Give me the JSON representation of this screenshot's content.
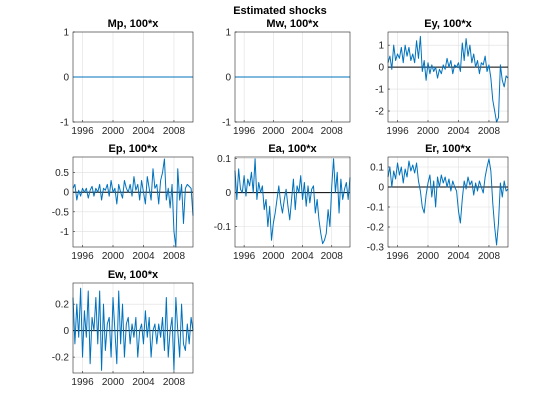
{
  "figure": {
    "title": "Estimated shocks",
    "line_color": "#0072BD",
    "zero_line_color": "#000000"
  },
  "chart_data": [
    {
      "type": "line",
      "title": "Mp, 100*x",
      "x_start": 1994.75,
      "x_step": 0.25,
      "xlim": [
        1994.75,
        2010.5
      ],
      "xticks": [
        1996,
        2000,
        2004,
        2008
      ],
      "xtick_labels": [
        "1996",
        "2000",
        "2004",
        "2008"
      ],
      "ylim": [
        -1,
        1
      ],
      "yticks": [
        -1,
        0,
        1
      ],
      "ytick_labels": [
        "-1",
        "0",
        "1"
      ],
      "grid": true,
      "values": [
        0,
        0,
        0,
        0,
        0,
        0,
        0,
        0,
        0,
        0,
        0,
        0,
        0,
        0,
        0,
        0,
        0,
        0,
        0,
        0,
        0,
        0,
        0,
        0,
        0,
        0,
        0,
        0,
        0,
        0,
        0,
        0,
        0,
        0,
        0,
        0,
        0,
        0,
        0,
        0,
        0,
        0,
        0,
        0,
        0,
        0,
        0,
        0,
        0,
        0,
        0,
        0,
        0,
        0,
        0,
        0,
        0,
        0,
        0,
        0,
        0,
        0,
        0,
        0
      ]
    },
    {
      "type": "line",
      "title": "Mw, 100*x",
      "x_start": 1994.75,
      "x_step": 0.25,
      "xlim": [
        1994.75,
        2010.5
      ],
      "xticks": [
        1996,
        2000,
        2004,
        2008
      ],
      "xtick_labels": [
        "1996",
        "2000",
        "2004",
        "2008"
      ],
      "ylim": [
        -1,
        1
      ],
      "yticks": [
        -1,
        0,
        1
      ],
      "ytick_labels": [
        "-1",
        "0",
        "1"
      ],
      "grid": true,
      "values": [
        0,
        0,
        0,
        0,
        0,
        0,
        0,
        0,
        0,
        0,
        0,
        0,
        0,
        0,
        0,
        0,
        0,
        0,
        0,
        0,
        0,
        0,
        0,
        0,
        0,
        0,
        0,
        0,
        0,
        0,
        0,
        0,
        0,
        0,
        0,
        0,
        0,
        0,
        0,
        0,
        0,
        0,
        0,
        0,
        0,
        0,
        0,
        0,
        0,
        0,
        0,
        0,
        0,
        0,
        0,
        0,
        0,
        0,
        0,
        0,
        0,
        0,
        0,
        0
      ]
    },
    {
      "type": "line",
      "title": "Ey, 100*x",
      "x_start": 1994.75,
      "x_step": 0.25,
      "xlim": [
        1994.75,
        2010.5
      ],
      "xticks": [
        1996,
        2000,
        2004,
        2008
      ],
      "xtick_labels": [
        "1996",
        "2000",
        "2004",
        "2008"
      ],
      "ylim": [
        -2.5,
        1.6
      ],
      "yticks": [
        -2,
        -1,
        0,
        1
      ],
      "ytick_labels": [
        "-2",
        "-1",
        "0",
        "1"
      ],
      "grid": true,
      "values": [
        0.2,
        0.5,
        -0.1,
        1.0,
        0.3,
        0.6,
        0.4,
        0.9,
        0.2,
        1.0,
        0.5,
        0.9,
        0.3,
        0.6,
        0.2,
        1.2,
        0.4,
        1.4,
        -0.2,
        0.3,
        -0.6,
        0.2,
        -0.3,
        0.1,
        -0.2,
        0.0,
        -0.5,
        -0.1,
        -0.3,
        0.1,
        -0.1,
        0.4,
        0.0,
        0.3,
        -0.3,
        0.1,
        0.0,
        0.2,
        -0.2,
        1.1,
        0.3,
        1.3,
        0.5,
        1.0,
        0.2,
        0.6,
        0.0,
        0.3,
        -0.3,
        0.2,
        0.1,
        0.5,
        -0.2,
        0.1,
        -0.5,
        -1.5,
        -2.0,
        -2.5,
        -2.3,
        0.1,
        -0.6,
        -0.9,
        -0.4,
        -0.5
      ]
    },
    {
      "type": "line",
      "title": "Ep, 100*x",
      "x_start": 1994.75,
      "x_step": 0.25,
      "xlim": [
        1994.75,
        2010.5
      ],
      "xticks": [
        1996,
        2000,
        2004,
        2008
      ],
      "xtick_labels": [
        "1996",
        "2000",
        "2004",
        "2008"
      ],
      "ylim": [
        -1.4,
        0.9
      ],
      "yticks": [
        -1,
        -0.5,
        0,
        0.5
      ],
      "ytick_labels": [
        "-1",
        "-0.5",
        "0",
        "0.5"
      ],
      "grid": true,
      "values": [
        0.1,
        0.2,
        -0.2,
        0.05,
        -0.1,
        0.1,
        0.0,
        0.1,
        -0.15,
        0.05,
        0.15,
        -0.1,
        0.1,
        0.0,
        0.2,
        -0.2,
        0.1,
        0.05,
        0.2,
        -0.1,
        0.3,
        0.0,
        0.1,
        -0.3,
        0.2,
        0.0,
        -0.15,
        0.3,
        0.1,
        0.0,
        0.2,
        -0.1,
        0.4,
        0.05,
        0.2,
        -0.2,
        0.3,
        0.0,
        -0.3,
        0.4,
        0.1,
        -0.2,
        0.6,
        0.1,
        0.2,
        -0.3,
        0.3,
        0.5,
        0.85,
        -0.2,
        0.1,
        -0.4,
        0.2,
        -1.0,
        -1.4,
        0.6,
        -0.2,
        0.2,
        -0.8,
        0.1,
        0.2,
        0.15,
        0.1,
        -0.6
      ]
    },
    {
      "type": "line",
      "title": "Ea, 100*x",
      "x_start": 1994.75,
      "x_step": 0.25,
      "xlim": [
        1994.75,
        2010.5
      ],
      "xticks": [
        1996,
        2000,
        2004,
        2008
      ],
      "xtick_labels": [
        "1996",
        "2000",
        "2004",
        "2008"
      ],
      "ylim": [
        -0.16,
        0.105
      ],
      "yticks": [
        -0.1,
        0,
        0.1
      ],
      "ytick_labels": [
        "-0.1",
        "0",
        "0.1"
      ],
      "grid": true,
      "values": [
        0.065,
        -0.02,
        0.07,
        0.01,
        0.0,
        0.05,
        -0.01,
        0.04,
        0.02,
        0.06,
        0.0,
        0.1,
        -0.02,
        0.03,
        0.0,
        0.02,
        -0.05,
        -0.02,
        -0.1,
        -0.04,
        -0.14,
        -0.09,
        -0.06,
        -0.02,
        0.02,
        -0.03,
        -0.06,
        -0.02,
        0.01,
        -0.04,
        -0.08,
        -0.02,
        0.04,
        -0.05,
        0.02,
        0.0,
        0.05,
        -0.02,
        0.03,
        -0.04,
        0.02,
        -0.03,
        0.01,
        0.02,
        -0.06,
        -0.02,
        -0.08,
        -0.12,
        -0.15,
        -0.14,
        -0.12,
        -0.05,
        -0.1,
        0.02,
        0.1,
        0.0,
        0.06,
        -0.06,
        0.04,
        -0.02,
        0.01,
        0.03,
        -0.02,
        0.045
      ]
    },
    {
      "type": "line",
      "title": "Er, 100*x",
      "x_start": 1994.75,
      "x_step": 0.25,
      "xlim": [
        1994.75,
        2010.5
      ],
      "xticks": [
        1996,
        2000,
        2004,
        2008
      ],
      "xtick_labels": [
        "1996",
        "2000",
        "2004",
        "2008"
      ],
      "ylim": [
        -0.3,
        0.15
      ],
      "yticks": [
        -0.3,
        -0.2,
        -0.1,
        0,
        0.1
      ],
      "ytick_labels": [
        "-0.3",
        "-0.2",
        "-0.1",
        "0",
        "0.1"
      ],
      "grid": true,
      "values": [
        0.05,
        0.1,
        0.0,
        0.08,
        0.04,
        0.12,
        0.06,
        0.1,
        0.02,
        0.09,
        0.05,
        0.13,
        0.08,
        0.11,
        0.07,
        0.12,
        0.03,
        -0.02,
        -0.1,
        -0.13,
        -0.04,
        0.02,
        0.06,
        -0.05,
        0.03,
        -0.1,
        0.05,
        0.0,
        0.06,
        0.02,
        0.05,
        0.0,
        0.04,
        -0.02,
        0.03,
        0.0,
        -0.02,
        -0.12,
        -0.18,
        -0.06,
        0.03,
        -0.01,
        0.05,
        0.01,
        0.03,
        -0.04,
        0.02,
        -0.02,
        0.03,
        0.0,
        -0.03,
        0.05,
        0.1,
        0.14,
        0.08,
        -0.08,
        -0.2,
        -0.29,
        -0.18,
        0.02,
        -0.05,
        0.03,
        -0.02,
        -0.01
      ]
    },
    {
      "type": "line",
      "title": "Ew, 100*x",
      "x_start": 1994.75,
      "x_step": 0.25,
      "xlim": [
        1994.75,
        2010.5
      ],
      "xticks": [
        1996,
        2000,
        2004,
        2008
      ],
      "xtick_labels": [
        "1996",
        "2000",
        "2004",
        "2008"
      ],
      "ylim": [
        -0.32,
        0.36
      ],
      "yticks": [
        -0.2,
        0,
        0.2
      ],
      "ytick_labels": [
        "-0.2",
        "0",
        "0.2"
      ],
      "grid": true,
      "values": [
        0.25,
        -0.1,
        0.2,
        -0.05,
        0.32,
        -0.2,
        0.15,
        -0.05,
        0.3,
        -0.25,
        0.1,
        0.0,
        0.25,
        -0.1,
        0.3,
        -0.3,
        0.2,
        -0.15,
        0.05,
        0.1,
        -0.2,
        0.25,
        0.0,
        -0.25,
        0.3,
        -0.1,
        0.2,
        -0.2,
        0.05,
        0.1,
        -0.1,
        0.05,
        -0.05,
        0.1,
        -0.2,
        0.0,
        0.05,
        -0.1,
        0.15,
        -0.05,
        0.1,
        -0.2,
        0.0,
        0.05,
        -0.1,
        0.05,
        -0.05,
        0.1,
        -0.15,
        0.25,
        -0.2,
        0.0,
        0.1,
        -0.3,
        0.25,
        0.0,
        -0.2,
        0.2,
        -0.1,
        -0.15,
        0.05,
        -0.1,
        0.1,
        0.0
      ]
    }
  ]
}
